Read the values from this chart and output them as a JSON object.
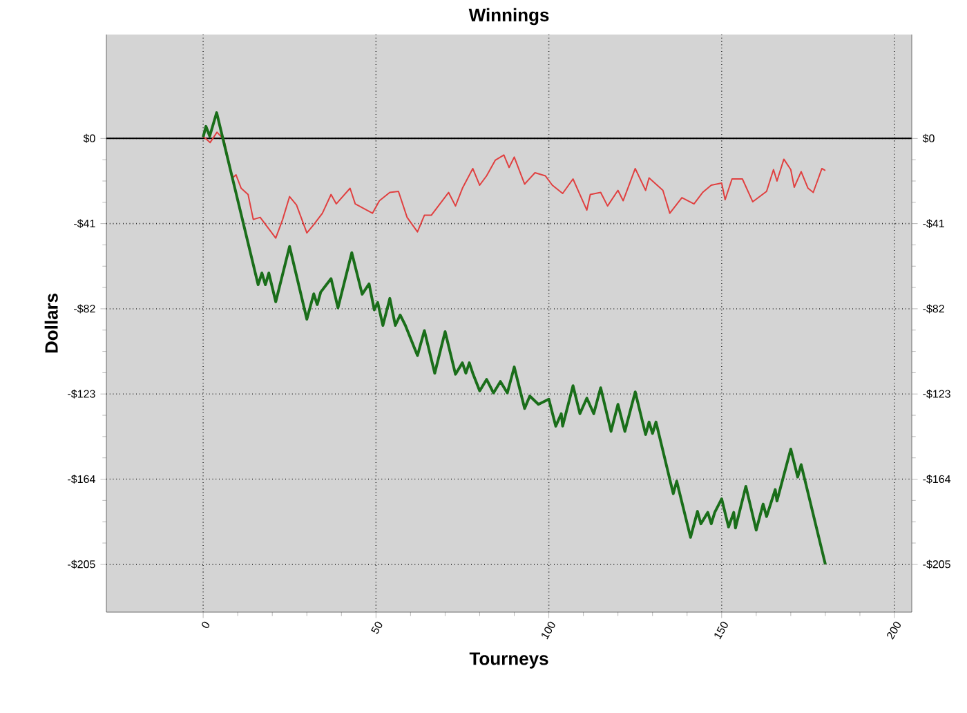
{
  "chart_data": {
    "type": "line",
    "title": "Winnings",
    "xlabel": "Tourneys",
    "ylabel": "Dollars",
    "xlim": [
      -28,
      205
    ],
    "ylim": [
      -228,
      50
    ],
    "y2lim": [
      -228,
      50
    ],
    "xticks": [
      0,
      50,
      100,
      150,
      200
    ],
    "yticks": [
      {
        "value": 0,
        "label": "$0"
      },
      {
        "value": -41,
        "label": "-$41"
      },
      {
        "value": -82,
        "label": "-$82"
      },
      {
        "value": -123,
        "label": "-$123"
      },
      {
        "value": -164,
        "label": "-$164"
      },
      {
        "value": -205,
        "label": "-$205"
      }
    ],
    "y2ticks": [
      {
        "value": 0,
        "label": "$0"
      },
      {
        "value": -41,
        "label": "-$41"
      },
      {
        "value": -82,
        "label": "-$82"
      },
      {
        "value": -123,
        "label": "-$123"
      },
      {
        "value": -164,
        "label": "-$164"
      },
      {
        "value": -205,
        "label": "-$205"
      }
    ],
    "grid": true,
    "marker": "none",
    "line_style": "solid",
    "ref_lines": [
      {
        "axis": "y",
        "value": 0,
        "color": "#000000"
      }
    ],
    "series": [
      {
        "color": "#e04040",
        "x": [
          0,
          2,
          4,
          6,
          8.5,
          9.5,
          11,
          13,
          14.5,
          16.5,
          21,
          23,
          25,
          27,
          30,
          32,
          34.5,
          37,
          38.5,
          42.5,
          44,
          49,
          51,
          54,
          56.5,
          59,
          62,
          64,
          66,
          71,
          73,
          75,
          78,
          80,
          82,
          84.5,
          87,
          88.5,
          90,
          93,
          96,
          99,
          101,
          104,
          107,
          109,
          111,
          112,
          115,
          117,
          120,
          121.5,
          125,
          128,
          129,
          133,
          135,
          138.5,
          142,
          144.5,
          147,
          150,
          151,
          153,
          156,
          159,
          163,
          165,
          166,
          168,
          170,
          171,
          173,
          175,
          176.5,
          179,
          180
        ],
        "values": [
          1,
          -2,
          3,
          -0.5,
          -19,
          -17.5,
          -24,
          -27,
          -39,
          -38,
          -48,
          -39,
          -28,
          -32,
          -45.5,
          -41.5,
          -36,
          -27,
          -31.5,
          -24,
          -31.5,
          -36,
          -30,
          -26,
          -25.5,
          -38,
          -45,
          -37,
          -37,
          -26,
          -32.5,
          -24,
          -14.5,
          -22.5,
          -18,
          -10.5,
          -8,
          -14,
          -9,
          -22,
          -16.5,
          -18,
          -22.5,
          -26.5,
          -19.5,
          -27,
          -34.5,
          -27,
          -26,
          -32.5,
          -25,
          -30,
          -14.5,
          -25,
          -19,
          -25,
          -36,
          -28.5,
          -31.5,
          -26,
          -22.5,
          -21.5,
          -29.5,
          -19.5,
          -19.5,
          -30.5,
          -25.5,
          -15,
          -20.5,
          -10,
          -15,
          -23.5,
          -16,
          -24,
          -26,
          -14.5,
          -15.5
        ]
      },
      {
        "color": "#1a6e1a",
        "x": [
          0,
          0.8,
          1.9,
          3.9,
          15.9,
          17,
          18,
          19,
          21,
          25,
          30,
          32,
          33,
          34,
          37,
          39,
          43,
          46,
          48,
          49.5,
          50.5,
          52,
          54,
          55.6,
          57,
          58.5,
          62,
          64,
          67,
          70,
          73,
          75,
          76,
          77,
          78,
          80,
          82,
          84,
          86,
          88,
          90,
          93,
          94.5,
          97,
          100,
          102,
          103.6,
          104,
          107,
          109,
          111,
          113,
          115,
          118,
          120,
          122,
          125,
          128,
          129,
          130,
          131,
          136,
          137,
          141,
          143,
          144,
          146,
          147,
          148,
          150,
          152,
          153.5,
          154,
          157,
          160,
          162,
          163,
          165.5,
          166,
          170,
          172,
          173,
          180
        ],
        "values": [
          0.7,
          5.8,
          1.1,
          12.4,
          -70.4,
          -64.8,
          -70.4,
          -64.8,
          -78.6,
          -52,
          -87,
          -74.8,
          -80,
          -74,
          -67.5,
          -81.5,
          -55,
          -75,
          -70,
          -82.5,
          -79,
          -90,
          -77,
          -90,
          -85,
          -90,
          -104.5,
          -92.5,
          -113,
          -93,
          -113.5,
          -108,
          -113,
          -108,
          -113,
          -121.5,
          -116,
          -122.5,
          -117,
          -122.5,
          -110,
          -130,
          -124,
          -128,
          -125.5,
          -138.5,
          -132.5,
          -138.5,
          -119,
          -132.5,
          -125,
          -132.5,
          -120,
          -141,
          -128,
          -141,
          -122,
          -142.5,
          -136.5,
          -142,
          -136.5,
          -171,
          -165,
          -192,
          -179.5,
          -185.5,
          -180,
          -185.5,
          -180,
          -173.5,
          -187,
          -180,
          -187.5,
          -167.5,
          -188.5,
          -176,
          -182,
          -169,
          -174.5,
          -149.5,
          -163,
          -157,
          -205
        ]
      }
    ]
  }
}
